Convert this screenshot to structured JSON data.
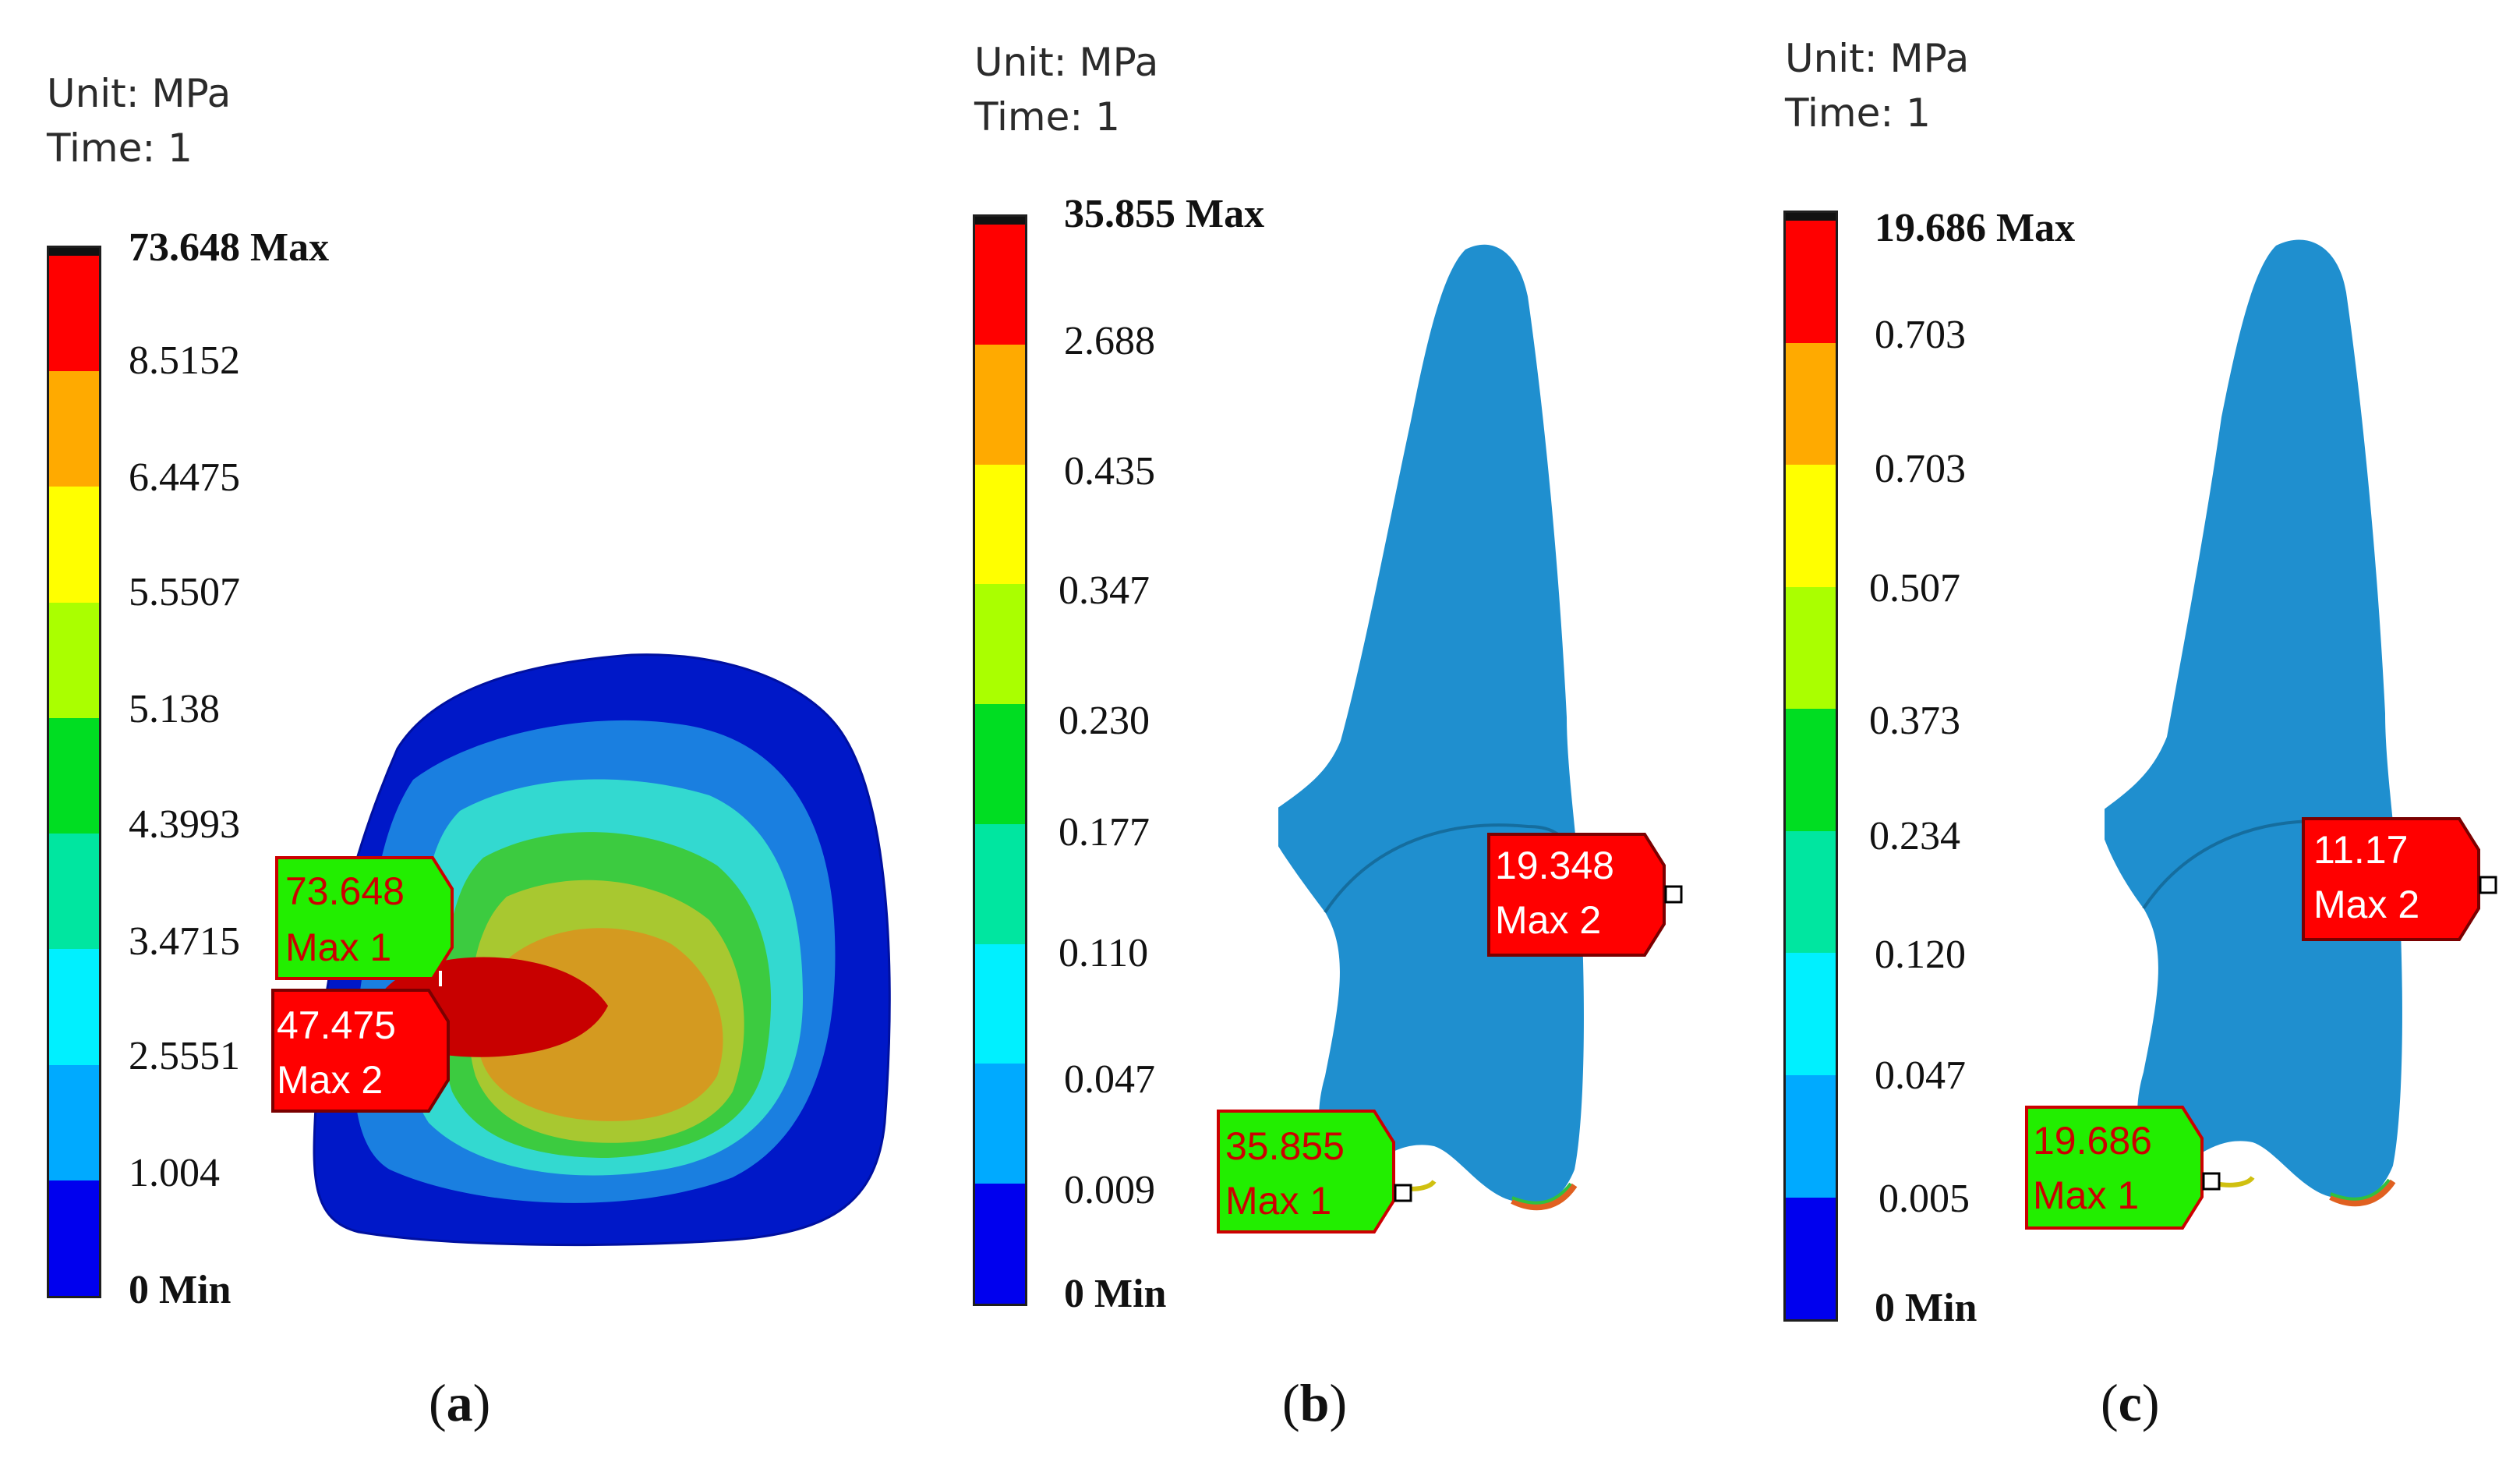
{
  "panels": [
    {
      "id": "a",
      "unit_label": "Unit: MPa",
      "time_label": "Time: 1",
      "legend": [
        "73.648 Max",
        "8.5152",
        "6.4475",
        "5.5507",
        "5.138",
        "4.3993",
        "3.4715",
        "2.5551",
        "1.004",
        "0 Min"
      ],
      "probes": [
        {
          "value": "73.648",
          "name": "Max 1",
          "fill": "green"
        },
        {
          "value": "47.475",
          "name": "Max 2",
          "fill": "red"
        }
      ],
      "caption": "a"
    },
    {
      "id": "b",
      "unit_label": "Unit: MPa",
      "time_label": "Time: 1",
      "legend": [
        "35.855 Max",
        "2.688",
        "0.435",
        "0.347",
        "0.230",
        "0.177",
        "0.110",
        "0.047",
        "0.009",
        "0 Min"
      ],
      "probes": [
        {
          "value": "19.348",
          "name": "Max 2",
          "fill": "red"
        },
        {
          "value": "35.855",
          "name": "Max 1",
          "fill": "green"
        }
      ],
      "caption": "b"
    },
    {
      "id": "c",
      "unit_label": "Unit: MPa",
      "time_label": "Time: 1",
      "legend": [
        "19.686 Max",
        "0.703",
        "0.703",
        "0.507",
        "0.373",
        "0.234",
        "0.120",
        "0.047",
        "0.005",
        "0 Min"
      ],
      "probes": [
        {
          "value": "11.17",
          "name": "Max 2",
          "fill": "red"
        },
        {
          "value": "19.686",
          "name": "Max 1",
          "fill": "green"
        }
      ],
      "caption": "c"
    }
  ],
  "colors": {
    "band_colors": [
      "#ff0000",
      "#ffaa00",
      "#ffff00",
      "#aaff00",
      "#00dd22",
      "#00e6a0",
      "#00f0ff",
      "#00aaff",
      "#0000ee"
    ],
    "tooth_blue": "#1f8fcf",
    "probe_red": "#ff0000",
    "probe_green": "#22ee00",
    "probe_red_text": "#ffffff",
    "probe_green_text": "#cc0000"
  }
}
